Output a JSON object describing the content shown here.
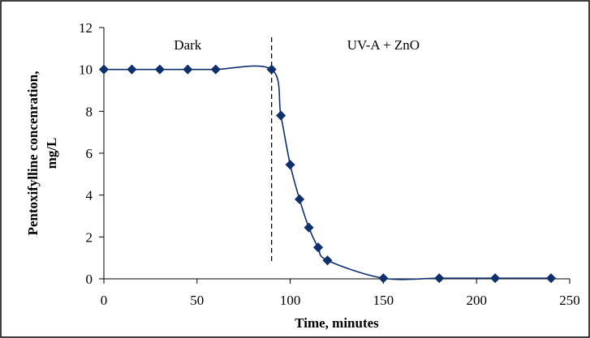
{
  "chart_data": {
    "type": "scatter",
    "title": "",
    "xlabel": "Time, minutes",
    "ylabel_lines": [
      "Pentoxifylline concenration,",
      "mg/L"
    ],
    "xlim": [
      0,
      250
    ],
    "ylim": [
      0,
      12
    ],
    "xticks": [
      0,
      50,
      100,
      150,
      200,
      250
    ],
    "yticks": [
      0,
      2,
      4,
      6,
      8,
      10,
      12
    ],
    "grid": false,
    "legend": "none",
    "series": [
      {
        "x": [
          0,
          15,
          30,
          45,
          60,
          90,
          95,
          100,
          105,
          110,
          115,
          120,
          150,
          180,
          210,
          240
        ],
        "y": [
          10,
          10,
          10,
          10,
          10,
          10,
          7.8,
          5.45,
          3.8,
          2.45,
          1.5,
          0.88,
          0.03,
          0.03,
          0.03,
          0.03
        ],
        "color": "#10306b",
        "marker": "diamond",
        "smooth": true
      }
    ],
    "vline": {
      "x": 90,
      "style": "dashed"
    },
    "annotations": [
      {
        "text": "Dark",
        "x": 45,
        "y": 10.95
      },
      {
        "text": "UV-A + ZnO",
        "x": 150,
        "y": 10.95
      }
    ]
  }
}
